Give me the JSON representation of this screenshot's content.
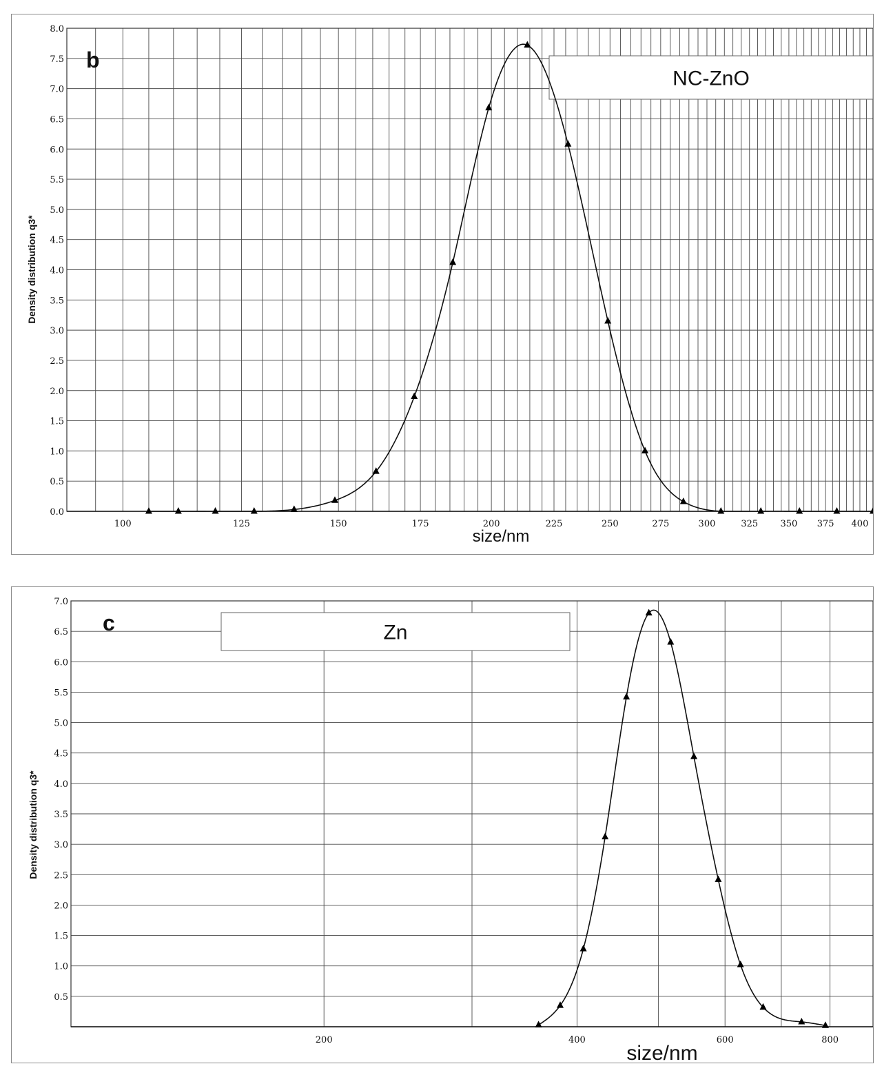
{
  "chart_data": [
    {
      "type": "line",
      "panel_label": "b",
      "legend": "NC-ZnO",
      "xlabel": "size/nm",
      "ylabel": "Density distribution q3*",
      "xscale": "log",
      "xlim": [
        90,
        410
      ],
      "ylim": [
        0,
        8
      ],
      "x_ticks": [
        100,
        125,
        150,
        175,
        200,
        225,
        250,
        275,
        300,
        325,
        350,
        375,
        400
      ],
      "y_ticks": [
        0.0,
        0.5,
        1.0,
        1.5,
        2.0,
        2.5,
        3.0,
        3.5,
        4.0,
        4.5,
        5.0,
        5.5,
        6.0,
        6.5,
        7.0,
        7.5,
        8.0
      ],
      "y_tick_labels": [
        "0.0",
        "0.5",
        "1.0",
        "1.5",
        "2.0",
        "2.5",
        "3.0",
        "3.5",
        "4.0",
        "4.5",
        "5.0",
        "5.5",
        "6.0",
        "6.5",
        "7.0",
        "7.5",
        "8.0"
      ],
      "grid": true,
      "marker": "triangle",
      "series": [
        {
          "x": [
            105,
            111,
            119,
            128,
            138,
            149,
            161,
            173,
            186,
            199,
            214,
            231,
            249,
            267,
            287,
            308,
            332,
            357,
            383,
            410
          ],
          "y": [
            0.0,
            0.0,
            0.0,
            0.0,
            0.03,
            0.18,
            0.66,
            1.9,
            4.12,
            6.68,
            7.72,
            6.08,
            3.15,
            1.0,
            0.16,
            0.0,
            0.0,
            0.0,
            0.0,
            0.0
          ]
        }
      ]
    },
    {
      "type": "line",
      "panel_label": "c",
      "legend": "Zn",
      "xlabel": "size/nm",
      "ylabel": "Density distribution q3*",
      "xscale": "log",
      "xlim": [
        100,
        900
      ],
      "ylim": [
        0,
        7
      ],
      "x_ticks": [
        200,
        400,
        600,
        800
      ],
      "y_ticks": [
        0.5,
        1.0,
        1.5,
        2.0,
        2.5,
        3.0,
        3.5,
        4.0,
        4.5,
        5.0,
        5.5,
        6.0,
        6.5,
        7.0
      ],
      "y_tick_labels": [
        "0.5",
        "1.0",
        "1.5",
        "2.0",
        "2.5",
        "3.0",
        "3.5",
        "4.0",
        "4.5",
        "5.0",
        "5.5",
        "6.0",
        "6.5",
        "7.0"
      ],
      "grid": true,
      "marker": "triangle",
      "series": [
        {
          "x": [
            360,
            382,
            407,
            432,
            458,
            487,
            517,
            551,
            589,
            626,
            666,
            740,
            790
          ],
          "y": [
            0.03,
            0.35,
            1.28,
            3.12,
            5.42,
            6.8,
            6.32,
            4.44,
            2.42,
            1.02,
            0.32,
            0.08,
            0.02
          ]
        }
      ]
    }
  ]
}
